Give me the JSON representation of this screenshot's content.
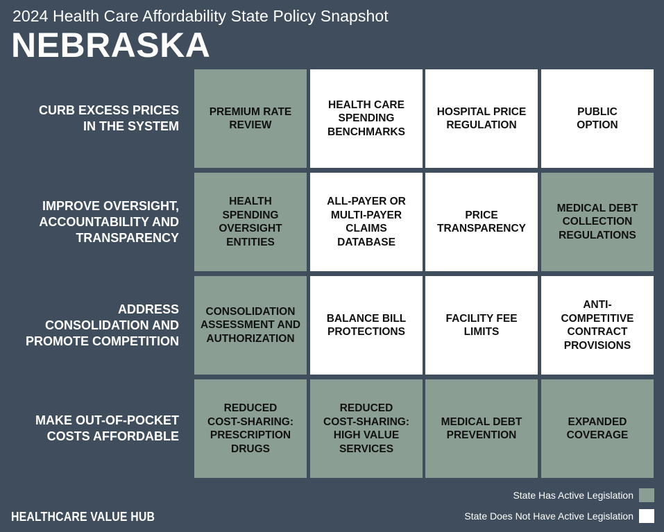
{
  "header": {
    "subtitle": "2024 Health Care Affordability State Policy Snapshot",
    "state": "NEBRASKA"
  },
  "colors": {
    "background": "#3f4d5c",
    "active": "#8a9e93",
    "inactive": "#ffffff"
  },
  "rows": [
    {
      "label": "CURB EXCESS PRICES\nIN THE SYSTEM",
      "cells": [
        {
          "label": "PREMIUM RATE\nREVIEW",
          "active": true
        },
        {
          "label": "HEALTH CARE\nSPENDING\nBENCHMARKS",
          "active": false
        },
        {
          "label": "HOSPITAL PRICE\nREGULATION",
          "active": false
        },
        {
          "label": "PUBLIC\nOPTION",
          "active": false
        }
      ]
    },
    {
      "label": "IMPROVE OVERSIGHT,\nACCOUNTABILITY AND\nTRANSPARENCY",
      "cells": [
        {
          "label": "HEALTH\nSPENDING\nOVERSIGHT\nENTITIES",
          "active": true
        },
        {
          "label": "ALL-PAYER OR\nMULTI-PAYER\nCLAIMS\nDATABASE",
          "active": false
        },
        {
          "label": "PRICE\nTRANSPARENCY",
          "active": false
        },
        {
          "label": "MEDICAL DEBT\nCOLLECTION\nREGULATIONS",
          "active": true
        }
      ]
    },
    {
      "label": "ADDRESS\nCONSOLIDATION AND\nPROMOTE COMPETITION",
      "cells": [
        {
          "label": "CONSOLIDATION\nASSESSMENT AND\nAUTHORIZATION",
          "active": true
        },
        {
          "label": "BALANCE BILL\nPROTECTIONS",
          "active": false
        },
        {
          "label": "FACILITY FEE\nLIMITS",
          "active": false
        },
        {
          "label": "ANTI-\nCOMPETITIVE\nCONTRACT\nPROVISIONS",
          "active": false
        }
      ]
    },
    {
      "label": "MAKE OUT-OF-POCKET\nCOSTS AFFORDABLE",
      "cells": [
        {
          "label": "REDUCED\nCOST-SHARING:\nPRESCRIPTION\nDRUGS",
          "active": true
        },
        {
          "label": "REDUCED\nCOST-SHARING:\nHIGH VALUE\nSERVICES",
          "active": true
        },
        {
          "label": "MEDICAL DEBT\nPREVENTION",
          "active": true
        },
        {
          "label": "EXPANDED\nCOVERAGE",
          "active": true
        }
      ]
    }
  ],
  "legend": {
    "active_label": "State Has Active Legislation",
    "inactive_label": "State Does Not Have Active Legislation"
  },
  "footer": {
    "brand": "HEALTHCARE VALUE HUB"
  }
}
